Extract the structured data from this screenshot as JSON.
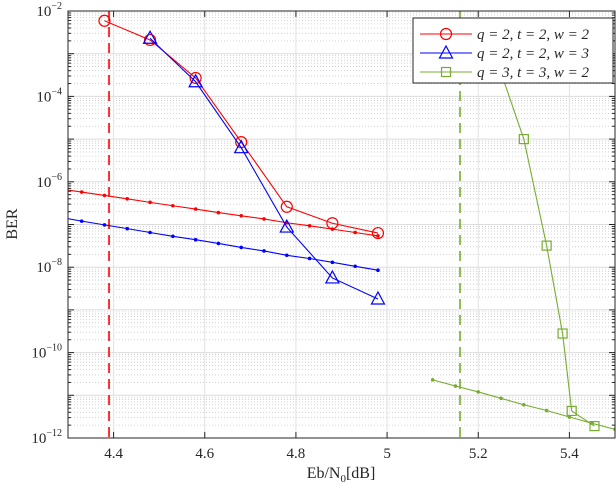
{
  "chart_data": {
    "type": "line",
    "title": "",
    "xlabel": "Eb/N0[dB]",
    "xlabel_parts": {
      "main": "Eb/N",
      "sub": "0",
      "unit": "[dB]"
    },
    "ylabel": "BER",
    "xlim": [
      4.3,
      5.5
    ],
    "ylim": [
      1e-12,
      0.01
    ],
    "yscale": "log",
    "grid": true,
    "legend_position": "top-right",
    "xticks": [
      4.4,
      4.6,
      4.8,
      5,
      5.2,
      5.4
    ],
    "xtick_labels": [
      "4.4",
      "4.6",
      "4.8",
      "5",
      "5.2",
      "5.4"
    ],
    "ytick_exponents": [
      -2,
      -4,
      -6,
      -8,
      -10,
      -12
    ],
    "ytick_base": "10",
    "series": [
      {
        "name": "q = 2, t = 2, w = 2",
        "color": "#ff0000",
        "marker": "circle",
        "x": [
          4.38,
          4.48,
          4.58,
          4.68,
          4.78,
          4.88,
          4.98
        ],
        "y": [
          0.0059,
          0.0021,
          0.00027,
          8.5e-06,
          2.6e-07,
          1.07e-07,
          6.3e-08
        ]
      },
      {
        "name": "q = 2, t = 2, w = 3",
        "color": "#0000ff",
        "marker": "triangle",
        "x": [
          4.48,
          4.58,
          4.68,
          4.78,
          4.88,
          4.98
        ],
        "y": [
          0.0023,
          0.00022,
          6.3e-06,
          8.7e-08,
          5.6e-09,
          1.8e-09
        ]
      },
      {
        "name": "q = 3, t = 3, w = 2",
        "color": "#77ac30",
        "marker": "square",
        "x": [
          5.25,
          5.3,
          5.35,
          5.385,
          5.405,
          5.455
        ],
        "y": [
          0.00036,
          1e-05,
          3.2e-08,
          2.8e-10,
          4.3e-12,
          1.9e-12
        ]
      }
    ],
    "bound_curves": [
      {
        "color": "#ff0000",
        "x": [
          4.28,
          4.33,
          4.38,
          4.43,
          4.48,
          4.53,
          4.58,
          4.63,
          4.68,
          4.73,
          4.78,
          4.83,
          4.88,
          4.93,
          4.98
        ],
        "y": [
          6.9e-07,
          5.75e-07,
          4.8e-07,
          4e-07,
          3.3e-07,
          2.75e-07,
          2.3e-07,
          1.9e-07,
          1.6e-07,
          1.35e-07,
          1.1e-07,
          9.3e-08,
          7.8e-08,
          6.5e-08,
          5.4e-08
        ]
      },
      {
        "color": "#0000ff",
        "x": [
          4.28,
          4.33,
          4.38,
          4.43,
          4.48,
          4.53,
          4.58,
          4.63,
          4.68,
          4.73,
          4.78,
          4.83,
          4.88,
          4.93,
          4.98
        ],
        "y": [
          1.5e-07,
          1.2e-07,
          9.8e-08,
          8e-08,
          6.5e-08,
          5.3e-08,
          4.4e-08,
          3.6e-08,
          2.9e-08,
          2.4e-08,
          1.9e-08,
          1.6e-08,
          1.3e-08,
          1.05e-08,
          8.5e-09
        ]
      },
      {
        "color": "#77ac30",
        "x": [
          5.1,
          5.15,
          5.2,
          5.25,
          5.3,
          5.35,
          5.4,
          5.45,
          5.5
        ],
        "y": [
          2.3e-11,
          1.65e-11,
          1.2e-11,
          8.5e-12,
          6e-12,
          4.4e-12,
          3.1e-12,
          2.2e-12,
          1.6e-12
        ]
      }
    ],
    "thresholds": [
      {
        "x": 4.39,
        "color": "#ff0000",
        "style": "dashed"
      },
      {
        "x": 5.16,
        "color": "#77ac30",
        "style": "dashed"
      }
    ]
  }
}
